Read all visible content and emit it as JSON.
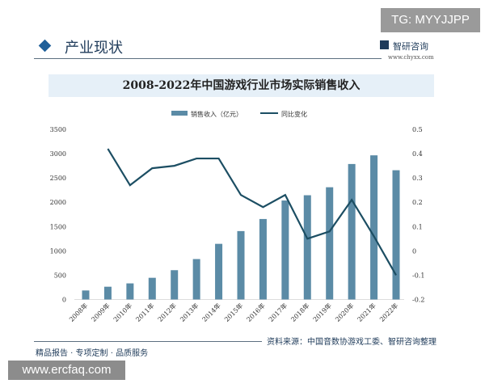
{
  "watermark_tag": "TG: MYYJJPP",
  "section_title": "产业现状",
  "brand": {
    "name": "智研咨询",
    "url": "www.chyxx.com"
  },
  "footer": {
    "source": "资料来源：中国音数协游戏工委、智研咨询整理",
    "slogan": "精品报告 · 专项定制 · 品质服务",
    "site": "www.ercfaq.com"
  },
  "colors": {
    "bar": "#5b8ba6",
    "line": "#1c4e63"
  },
  "chart_data": {
    "type": "bar+line",
    "title": "2008-2022年中国游戏行业市场实际销售收入",
    "categories": [
      "2008年",
      "2009年",
      "2010年",
      "2011年",
      "2012年",
      "2013年",
      "2014年",
      "2015年",
      "2016年",
      "2017年",
      "2018年",
      "2019年",
      "2020年",
      "2021年",
      "2022年"
    ],
    "series": [
      {
        "name": "销售收入（亿元）",
        "type": "bar",
        "axis": "left",
        "values": [
          185.6,
          262.8,
          331.3,
          446.1,
          602.8,
          831.7,
          1144.8,
          1407.0,
          1655.7,
          2036.1,
          2144.4,
          2308.8,
          2786.9,
          2965.1,
          2658.8
        ]
      },
      {
        "name": "同比变化",
        "type": "line",
        "axis": "right",
        "values": [
          null,
          0.42,
          0.27,
          0.34,
          0.35,
          0.38,
          0.38,
          0.23,
          0.18,
          0.23,
          0.05,
          0.08,
          0.21,
          0.06,
          -0.1
        ]
      }
    ],
    "left_axis": {
      "ylim": [
        0,
        3500
      ],
      "ticks": [
        "0",
        "500",
        "1000",
        "1500",
        "2000",
        "2500",
        "3000",
        "3500"
      ]
    },
    "right_axis": {
      "ylim": [
        -0.2,
        0.5
      ],
      "ticks": [
        "-0.2",
        "-0.1",
        "0",
        "0.1",
        "0.2",
        "0.3",
        "0.4",
        "0.5"
      ]
    },
    "legend": "top-center",
    "grid": false
  }
}
